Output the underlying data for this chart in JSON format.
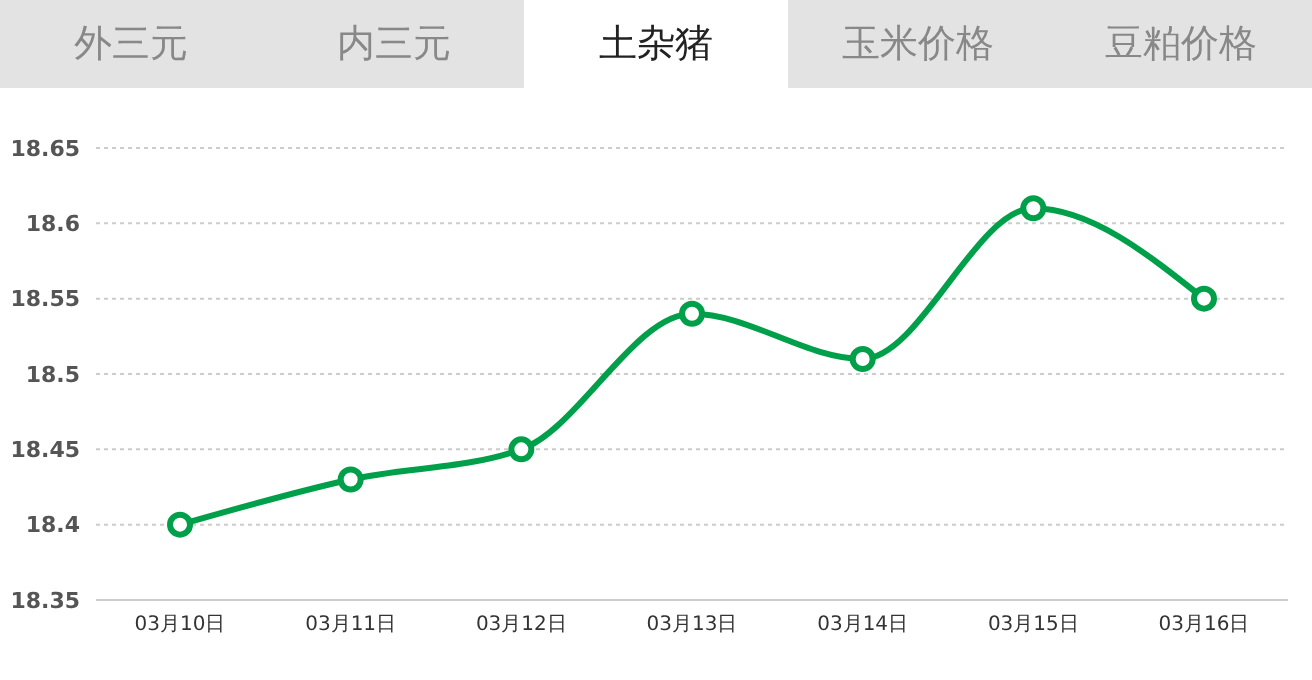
{
  "chart_data": {
    "type": "line",
    "title": "土杂猪",
    "annotations": [
      "外三元",
      "内三元",
      "玉米价格",
      "豆粕价格"
    ],
    "categories": [
      "03月10日",
      "03月11日",
      "03月12日",
      "03月13日",
      "03月14日",
      "03月15日",
      "03月16日"
    ],
    "series": [
      {
        "color": "#00a04a",
        "values": [
          18.4,
          18.43,
          18.45,
          18.54,
          18.51,
          18.61,
          18.55
        ]
      }
    ],
    "ylim": [
      18.35,
      18.65
    ],
    "yticks": [
      18.35,
      18.4,
      18.45,
      18.5,
      18.55,
      18.6,
      18.65
    ],
    "grid": "y",
    "marker": "circle",
    "line_style": "solid",
    "legend": false
  }
}
